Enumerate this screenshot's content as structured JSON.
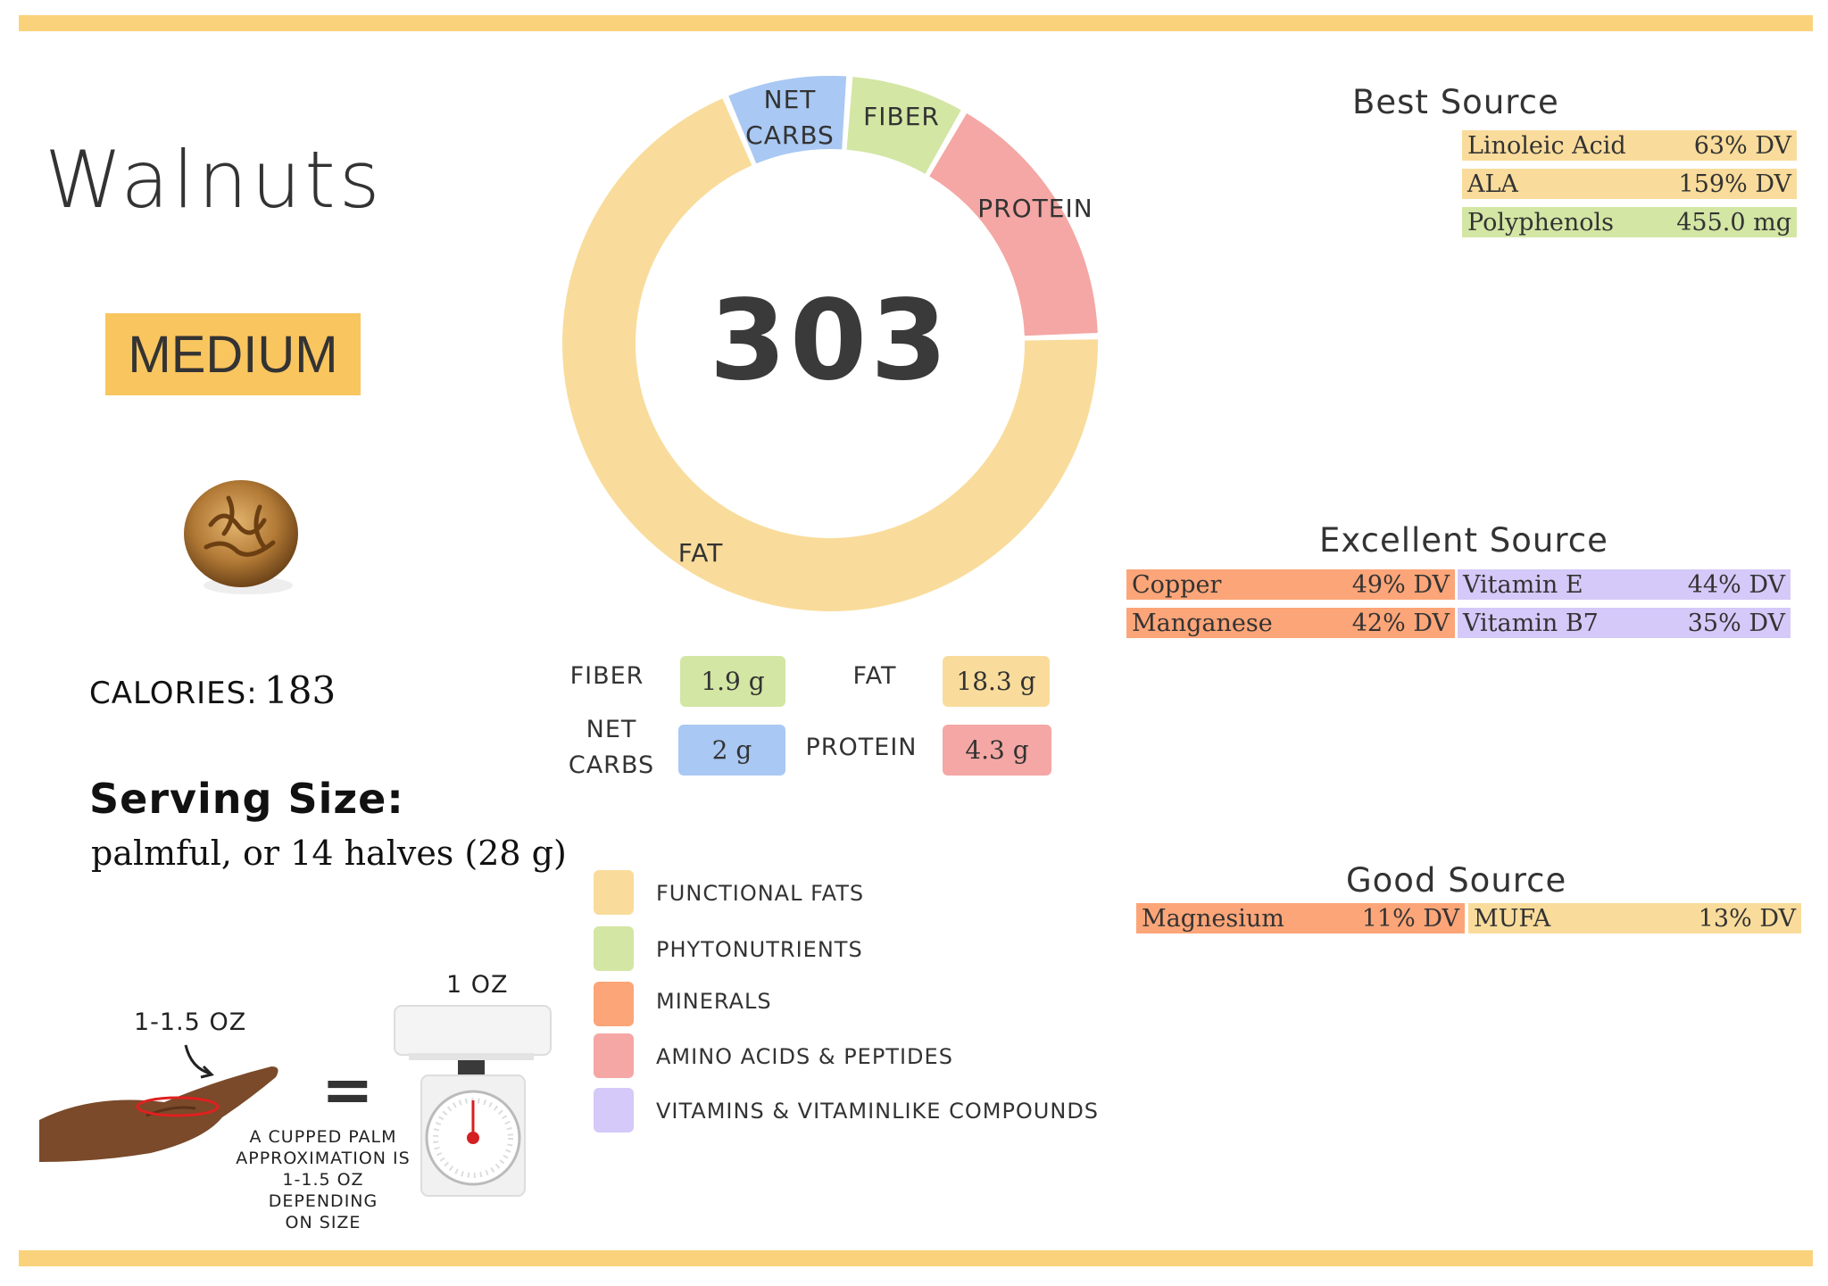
{
  "food": {
    "name": "Walnuts",
    "level": "MEDIUM",
    "calories_label": "CALORIES:",
    "calories_value": "183",
    "serving_title": "Serving Size:",
    "serving_text": "palmful, or 14 halves (28 g)"
  },
  "chart_data": {
    "type": "pie",
    "variant": "donut",
    "center_value": "303",
    "slices": [
      {
        "label": "NET CARBS",
        "value": 2,
        "color": "#a9c8f3"
      },
      {
        "label": "FIBER",
        "value": 1.9,
        "color": "#d3e6a4"
      },
      {
        "label": "PROTEIN",
        "value": 4.3,
        "color": "#f4a7a4"
      },
      {
        "label": "FAT",
        "value": 18.3,
        "color": "#f9dc9b"
      }
    ]
  },
  "macros": {
    "fiber": {
      "label": "FIBER",
      "value": "1.9 g",
      "color": "#d3e6a4"
    },
    "fat": {
      "label": "FAT",
      "value": "18.3 g",
      "color": "#f9dc9b"
    },
    "net_carbs": {
      "label1": "NET",
      "label2": "CARBS",
      "value": "2 g",
      "color": "#a9c8f3"
    },
    "protein": {
      "label": "PROTEIN",
      "value": "4.3 g",
      "color": "#f4a7a4"
    }
  },
  "legend": [
    {
      "label": "FUNCTIONAL  FATS",
      "color": "#f9dc9b"
    },
    {
      "label": "PHYTONUTRIENTS",
      "color": "#d3e6a4"
    },
    {
      "label": "MINERALS",
      "color": "#fca578"
    },
    {
      "label": "AMINO ACIDS & PEPTIDES",
      "color": "#f4a7a4"
    },
    {
      "label": "VITAMINS & VITAMINLIKE COMPOUNDS",
      "color": "#d4c9f8"
    }
  ],
  "best_source": {
    "title": "Best Source",
    "rows": [
      {
        "name": "Linoleic Acid",
        "value": "63% DV",
        "color": "#f9dc9b"
      },
      {
        "name": "ALA",
        "value": "159% DV",
        "color": "#f9dc9b"
      },
      {
        "name": "Polyphenols",
        "value": "455.0 mg",
        "color": "#d3e6a4"
      }
    ]
  },
  "excellent_source": {
    "title": "Excellent Source",
    "rows": [
      {
        "name": "Copper",
        "value": "49% DV",
        "color": "#fca578"
      },
      {
        "name": "Vitamin E",
        "value": "44% DV",
        "color": "#d4c9f8"
      },
      {
        "name": "Manganese",
        "value": "42% DV",
        "color": "#fca578"
      },
      {
        "name": "Vitamin B7",
        "value": "35% DV",
        "color": "#d4c9f8"
      }
    ]
  },
  "good_source": {
    "title": "Good Source",
    "rows": [
      {
        "name": "Magnesium",
        "value": "11% DV",
        "color": "#fca578"
      },
      {
        "name": "MUFA",
        "value": "13% DV",
        "color": "#f9dc9b"
      }
    ]
  },
  "serving_graphic": {
    "scale_label": "1 OZ",
    "hand_label": "1-1.5 OZ",
    "equals": "=",
    "note_lines": [
      "A CUPPED PALM",
      "APPROXIMATION IS",
      "1-1.5 OZ DEPENDING",
      "ON SIZE"
    ]
  }
}
